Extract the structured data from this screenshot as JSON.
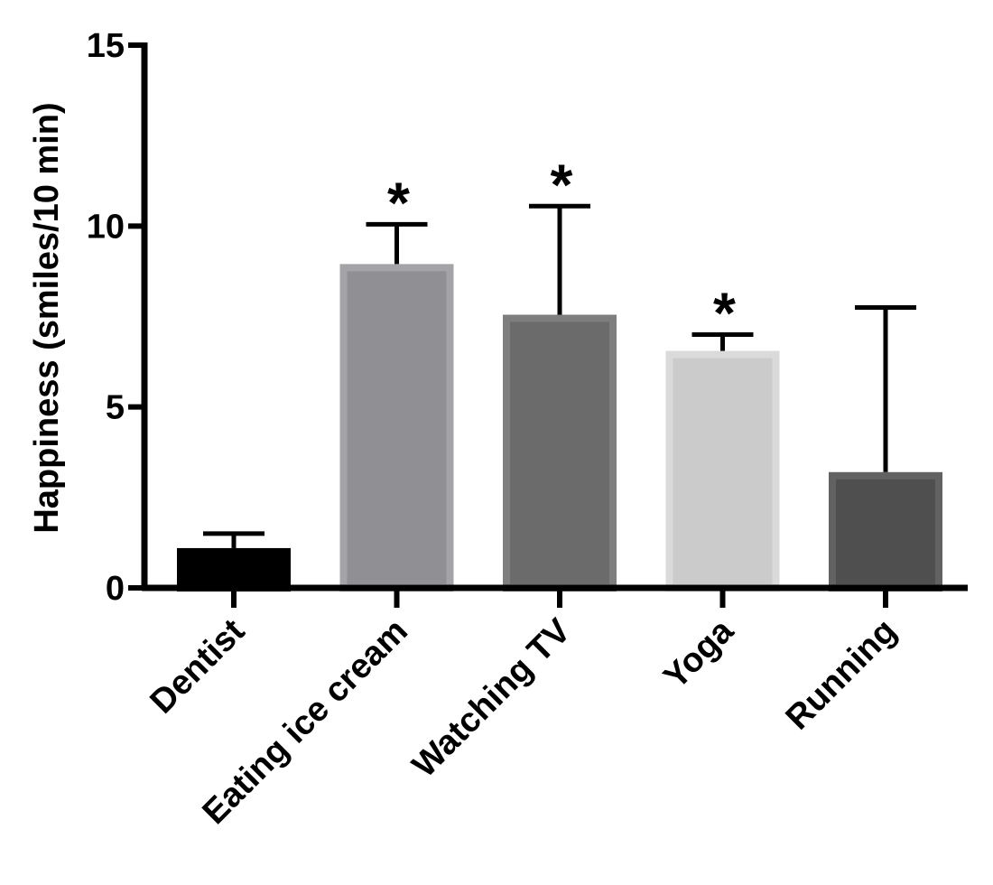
{
  "chart_data": {
    "type": "bar",
    "title": "",
    "xlabel": "",
    "ylabel": "Happiness (smiles/10 min)",
    "ylim": [
      0,
      15
    ],
    "yticks": [
      0,
      5,
      10,
      15
    ],
    "grid": false,
    "legend": "none",
    "categories": [
      "Dentist",
      "Eating ice cream",
      "Watching TV",
      "Yoga",
      "Running"
    ],
    "values": [
      1.1,
      8.95,
      7.55,
      6.55,
      3.2
    ],
    "error_upper": [
      0.4,
      1.1,
      3.0,
      0.45,
      4.55
    ],
    "significance": [
      "",
      "*",
      "*",
      "*",
      ""
    ],
    "bar_colors": [
      "#000000",
      "#8f8f94",
      "#6b6b6b",
      "#cbcbcb",
      "#4f4f4f"
    ],
    "bar_edge_colors": [
      "#000000",
      "#a4a4a8",
      "#7e7e7e",
      "#dadada",
      "#626262"
    ]
  }
}
